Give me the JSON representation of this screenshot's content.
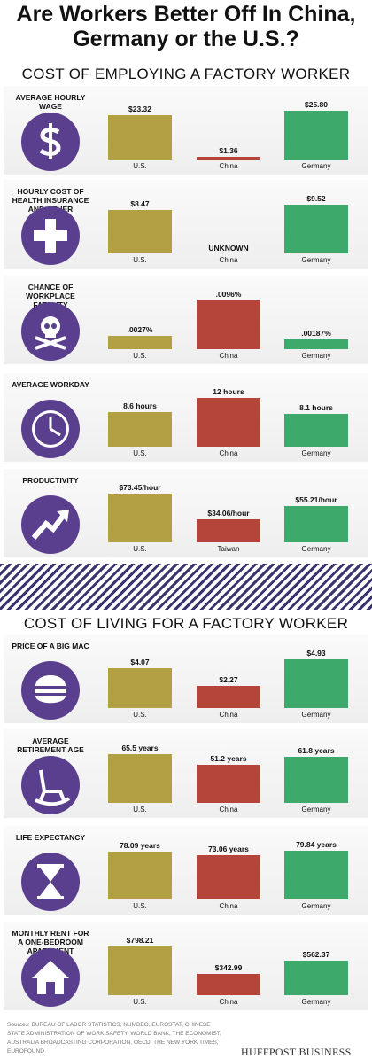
{
  "title": "Are Workers Better Off In China, Germany or the U.S.?",
  "sections": [
    "COST OF EMPLOYING A FACTORY WORKER",
    "COST OF LIVING FOR A FACTORY WORKER"
  ],
  "sources": "Sources: BUREAU OF LABOR STATISTICS, NUMBEO, EUROSTAT, CHINESE STATE ADMINISTRATION OF WORK SAFETY, WORLD BANK, THE ECONOMIST, AUSTRALIA BROADCASTING CORPORATION, OECD, THE NEW YORK TIMES, EUROFOUND",
  "brand": "HUFFPOST BUSINESS",
  "chart_data": [
    {
      "type": "bar",
      "label": "AVERAGE HOURLY WAGE",
      "categories": [
        "U.S.",
        "China",
        "Germany"
      ],
      "values": [
        23.32,
        1.36,
        25.8
      ],
      "value_labels": [
        "$23.32",
        "$1.36",
        "$25.80"
      ],
      "colors": [
        "#b3a042",
        "#b5443a",
        "#3daa6b"
      ]
    },
    {
      "type": "bar",
      "label": "HOURLY COST OF HEALTH INSURANCE AND OTHER BENEFITS",
      "categories": [
        "U.S.",
        "China",
        "Germany"
      ],
      "values": [
        8.47,
        null,
        9.52
      ],
      "value_labels": [
        "$8.47",
        "UNKNOWN",
        "$9.52"
      ],
      "colors": [
        "#b3a042",
        "#b5443a",
        "#3daa6b"
      ]
    },
    {
      "type": "bar",
      "label": "CHANCE OF WORKPLACE FATALITY",
      "categories": [
        "U.S.",
        "China",
        "Germany"
      ],
      "values": [
        0.0027,
        0.0096,
        0.00187
      ],
      "value_labels": [
        ".0027%",
        ".0096%",
        ".00187%"
      ],
      "colors": [
        "#b3a042",
        "#b5443a",
        "#3daa6b"
      ]
    },
    {
      "type": "bar",
      "label": "AVERAGE WORKDAY",
      "categories": [
        "U.S.",
        "China",
        "Germany"
      ],
      "values": [
        8.6,
        12,
        8.1
      ],
      "value_labels": [
        "8.6 hours",
        "12 hours",
        "8.1 hours"
      ],
      "colors": [
        "#b3a042",
        "#b5443a",
        "#3daa6b"
      ]
    },
    {
      "type": "bar",
      "label": "PRODUCTIVITY",
      "categories": [
        "U.S.",
        "Taiwan",
        "Germany"
      ],
      "values": [
        73.45,
        34.06,
        55.21
      ],
      "value_labels": [
        "$73.45/hour",
        "$34.06/hour",
        "$55.21/hour"
      ],
      "colors": [
        "#b3a042",
        "#b5443a",
        "#3daa6b"
      ]
    },
    {
      "type": "bar",
      "label": "PRICE OF A BIG MAC",
      "categories": [
        "U.S.",
        "China",
        "Germany"
      ],
      "values": [
        4.07,
        2.27,
        4.93
      ],
      "value_labels": [
        "$4.07",
        "$2.27",
        "$4.93"
      ],
      "colors": [
        "#b3a042",
        "#b5443a",
        "#3daa6b"
      ]
    },
    {
      "type": "bar",
      "label": "AVERAGE RETIREMENT AGE",
      "categories": [
        "U.S.",
        "China",
        "Germany"
      ],
      "values": [
        65.5,
        51.2,
        61.8
      ],
      "value_labels": [
        "65.5 years",
        "51.2 years",
        "61.8 years"
      ],
      "colors": [
        "#b3a042",
        "#b5443a",
        "#3daa6b"
      ]
    },
    {
      "type": "bar",
      "label": "LIFE EXPECTANCY",
      "categories": [
        "U.S.",
        "China",
        "Germany"
      ],
      "values": [
        78.09,
        73.06,
        79.84
      ],
      "value_labels": [
        "78.09 years",
        "73.06 years",
        "79.84 years"
      ],
      "colors": [
        "#b3a042",
        "#b5443a",
        "#3daa6b"
      ]
    },
    {
      "type": "bar",
      "label": "MONTHLY RENT FOR A ONE-BEDROOM APARTMENT",
      "categories": [
        "U.S.",
        "China",
        "Germany"
      ],
      "values": [
        798.21,
        342.99,
        562.37
      ],
      "value_labels": [
        "$798.21",
        "$342.99",
        "$562.37"
      ],
      "colors": [
        "#b3a042",
        "#b5443a",
        "#3daa6b"
      ]
    }
  ]
}
